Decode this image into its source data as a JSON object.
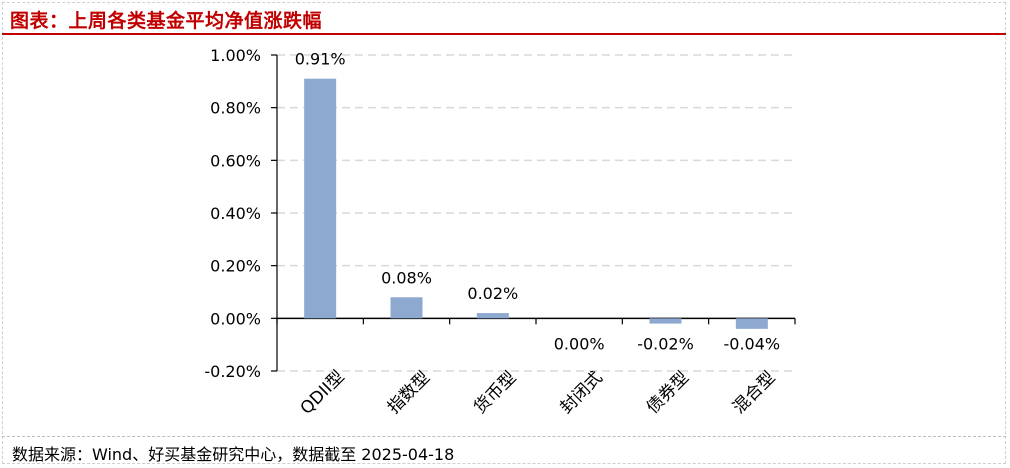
{
  "header": {
    "title": "图表：上周各类基金平均净值涨跌幅"
  },
  "footer": {
    "source": "数据来源：Wind、好买基金研究中心，数据截至 2025-04-18"
  },
  "colors": {
    "bar": "#8ea9cf",
    "title": "#c00000",
    "grid": "#d9d9d9",
    "axis": "#000000"
  },
  "chart_data": {
    "type": "bar",
    "categories": [
      "QDII型",
      "指数型",
      "货币型",
      "封闭式",
      "债券型",
      "混合型"
    ],
    "values": [
      0.91,
      0.08,
      0.02,
      0.0,
      -0.02,
      -0.04
    ],
    "data_labels": [
      "0.91%",
      "0.08%",
      "0.02%",
      "0.00%",
      "-0.02%",
      "-0.04%"
    ],
    "yticks": [
      1.0,
      0.8,
      0.6,
      0.4,
      0.2,
      0.0,
      -0.2
    ],
    "ytick_labels": [
      "1.00%",
      "0.80%",
      "0.60%",
      "0.40%",
      "0.20%",
      "0.00%",
      "-0.20%"
    ],
    "ylim": [
      -0.2,
      1.0
    ],
    "grid": true
  }
}
